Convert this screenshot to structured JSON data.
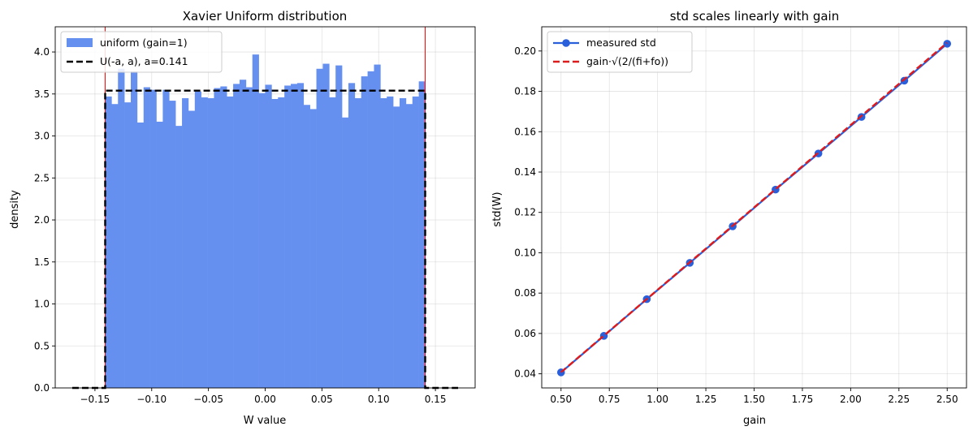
{
  "chart_data": [
    {
      "type": "bar",
      "title": "Xavier Uniform distribution",
      "xlabel": "W value",
      "ylabel": "density",
      "xlim": [
        -0.185,
        0.185
      ],
      "ylim": [
        0,
        4.3
      ],
      "xticks": [
        -0.15,
        -0.1,
        -0.05,
        0.0,
        0.05,
        0.1,
        0.15
      ],
      "xtick_labels": [
        "−0.15",
        "−0.10",
        "−0.05",
        "0.00",
        "0.05",
        "0.10",
        "0.15"
      ],
      "yticks": [
        0,
        0.5,
        1.0,
        1.5,
        2.0,
        2.5,
        3.0,
        3.5,
        4.0
      ],
      "ytick_labels": [
        "0.0",
        "0.5",
        "1.0",
        "1.5",
        "2.0",
        "2.5",
        "3.0",
        "3.5",
        "4.0"
      ],
      "grid": true,
      "legend_position": "top-left",
      "histogram": {
        "name": "uniform (gain=1)",
        "color": "#6690f0",
        "range": [
          -0.141,
          0.141
        ],
        "values": [
          3.47,
          3.38,
          3.8,
          3.4,
          3.77,
          3.16,
          3.58,
          3.55,
          3.17,
          3.55,
          3.42,
          3.12,
          3.45,
          3.3,
          3.53,
          3.46,
          3.45,
          3.57,
          3.59,
          3.47,
          3.62,
          3.67,
          3.58,
          3.97,
          3.51,
          3.61,
          3.44,
          3.46,
          3.6,
          3.62,
          3.63,
          3.37,
          3.32,
          3.8,
          3.86,
          3.46,
          3.84,
          3.22,
          3.63,
          3.45,
          3.71,
          3.77,
          3.85,
          3.45,
          3.47,
          3.35,
          3.45,
          3.38,
          3.47,
          3.65
        ]
      },
      "pdf_line": {
        "name": "U(-a, a), a=0.141",
        "color": "#000000",
        "a": 0.141,
        "height": 3.54,
        "x": [
          -0.17,
          -0.141,
          -0.141,
          0.141,
          0.141,
          0.17
        ],
        "y": [
          0,
          0,
          3.54,
          3.54,
          0,
          0
        ]
      },
      "vlines": {
        "color": "#ff0000",
        "x": [
          -0.141,
          0.141
        ]
      }
    },
    {
      "type": "line",
      "title": "std scales linearly with gain",
      "xlabel": "gain",
      "ylabel": "std(W)",
      "xlim": [
        0.4,
        2.6
      ],
      "ylim": [
        0.033,
        0.212
      ],
      "xticks": [
        0.5,
        0.75,
        1.0,
        1.25,
        1.5,
        1.75,
        2.0,
        2.25,
        2.5
      ],
      "xtick_labels": [
        "0.50",
        "0.75",
        "1.00",
        "1.25",
        "1.50",
        "1.75",
        "2.00",
        "2.25",
        "2.50"
      ],
      "yticks": [
        0.04,
        0.06,
        0.08,
        0.1,
        0.12,
        0.14,
        0.16,
        0.18,
        0.2
      ],
      "ytick_labels": [
        "0.04",
        "0.06",
        "0.08",
        "0.10",
        "0.12",
        "0.14",
        "0.16",
        "0.18",
        "0.20"
      ],
      "grid": true,
      "legend_position": "top-left",
      "series": [
        {
          "name": "measured std",
          "color": "#2a5fdc",
          "style": "solid-with-markers",
          "x": [
            0.5,
            0.722,
            0.944,
            1.167,
            1.389,
            1.611,
            1.833,
            2.056,
            2.278,
            2.5
          ],
          "y": [
            0.0407,
            0.0588,
            0.077,
            0.095,
            0.1131,
            0.1313,
            0.1492,
            0.1673,
            0.1853,
            0.2036
          ]
        },
        {
          "name": "gain·√(2/(fi+fo))",
          "color": "#e01a1a",
          "style": "dashed",
          "x": [
            0.5,
            2.5
          ],
          "y": [
            0.0408,
            0.2041
          ]
        }
      ]
    }
  ]
}
